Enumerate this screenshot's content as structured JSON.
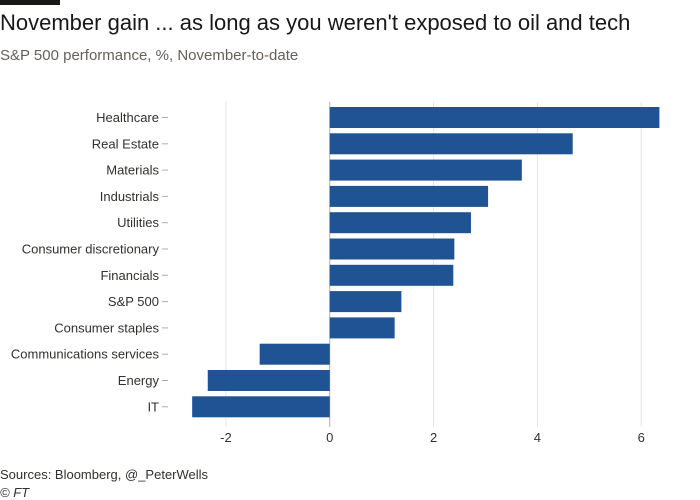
{
  "header": {
    "title": "November gain ... as long as you weren't exposed to oil and tech",
    "subtitle": "S&P 500 performance, %, November-to-date"
  },
  "footer": {
    "source": "Sources: Bloomberg, @_PeterWells",
    "copyright": "© FT"
  },
  "colors": {
    "bar": "#1f5393",
    "grid": "#e8e4e0",
    "zero_line": "#b5aca4"
  },
  "chart_data": {
    "type": "bar",
    "orientation": "horizontal",
    "categories": [
      "Healthcare",
      "Real Estate",
      "Materials",
      "Industrials",
      "Utilities",
      "Consumer discretionary",
      "Financials",
      "S&P 500",
      "Consumer staples",
      "Communications services",
      "Energy",
      "IT"
    ],
    "values": [
      6.35,
      4.68,
      3.7,
      3.05,
      2.72,
      2.4,
      2.38,
      1.38,
      1.25,
      -1.35,
      -2.35,
      -2.65
    ],
    "xlim": [
      -3,
      6.4
    ],
    "xticks": [
      -2,
      0,
      2,
      4,
      6
    ],
    "xtick_labels": [
      "-2",
      "0",
      "2",
      "4",
      "6"
    ],
    "grid": true,
    "title": "November gain ... as long as you weren't exposed to oil and tech",
    "subtitle": "S&P 500 performance, %, November-to-date"
  }
}
